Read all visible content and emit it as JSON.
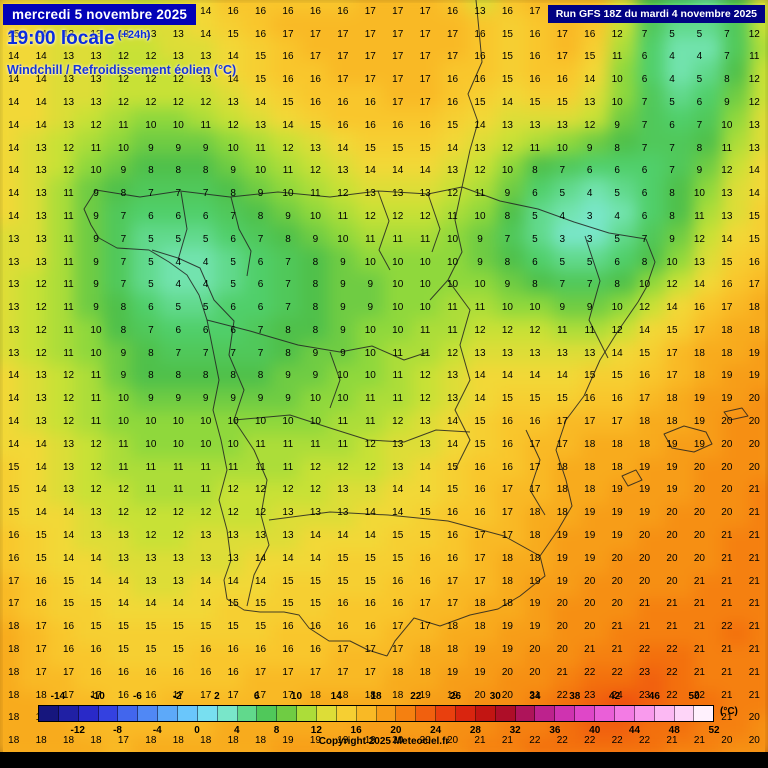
{
  "header": {
    "date": "mercredi 5 novembre 2025",
    "time": "19:00 locale",
    "offset": "(+24h)",
    "variable": "Windchill / Refroidissement éolien (°C)",
    "run": "Run GFS 18Z du mardi 4 novembre 2025"
  },
  "footer": {
    "copyright": "Copyright 2025 Meteociel.fr"
  },
  "legend": {
    "min": -16,
    "max": 52,
    "step": 2,
    "unit": "(°C)",
    "ticks_top": [
      "-14",
      "-10",
      "-6",
      "-2",
      "2",
      "6",
      "10",
      "14",
      "18",
      "22",
      "26",
      "30",
      "34",
      "38",
      "42",
      "46",
      "50"
    ],
    "ticks_bottom": [
      "-12",
      "-8",
      "-4",
      "0",
      "4",
      "8",
      "12",
      "16",
      "20",
      "24",
      "28",
      "32",
      "36",
      "40",
      "44",
      "48",
      "52"
    ]
  },
  "colors": {
    "stops": [
      [
        -16,
        "#10106a"
      ],
      [
        -14,
        "#1b1b8f"
      ],
      [
        -12,
        "#2424b8"
      ],
      [
        -10,
        "#2d2dd8"
      ],
      [
        -8,
        "#3a55e8"
      ],
      [
        -6,
        "#4a76f2"
      ],
      [
        -4,
        "#569af7"
      ],
      [
        -2,
        "#63b8fa"
      ],
      [
        0,
        "#70d4fb"
      ],
      [
        2,
        "#7fe9e4"
      ],
      [
        4,
        "#72e3ae"
      ],
      [
        6,
        "#50cf6a"
      ],
      [
        8,
        "#4fc04a"
      ],
      [
        10,
        "#8fd83c"
      ],
      [
        12,
        "#c8e136"
      ],
      [
        14,
        "#f2d837"
      ],
      [
        16,
        "#f9c62c"
      ],
      [
        18,
        "#f8ab1d"
      ],
      [
        20,
        "#f68f13"
      ],
      [
        22,
        "#f3700d"
      ],
      [
        24,
        "#ee4f0e"
      ],
      [
        26,
        "#e3300e"
      ],
      [
        28,
        "#cf1a10"
      ],
      [
        30,
        "#b40f14"
      ],
      [
        32,
        "#a80d3c"
      ],
      [
        34,
        "#b41a78"
      ],
      [
        36,
        "#c62aa2"
      ],
      [
        38,
        "#d83cbe"
      ],
      [
        40,
        "#e551d2"
      ],
      [
        42,
        "#ef6cde"
      ],
      [
        44,
        "#f78ae9"
      ],
      [
        46,
        "#fbaaf0"
      ],
      [
        48,
        "#fdc8f6"
      ],
      [
        50,
        "#ffe2fa"
      ],
      [
        52,
        "#ffffff"
      ]
    ]
  },
  "grid": {
    "cols": 28,
    "rows": 33,
    "values": [
      "15 14 13 13 13 12 13 14 16 16 16 16 16 17 17 17 16 13 16 17 17 17 13 8 6 5 8 13",
      "15 14 13 13 13 13 13 14 15 16 17 17 17 17 17 17 17 16 15 16 17 16 12 7 5 5 7 12",
      "14 14 13 13 12 12 13 13 14 15 16 17 17 17 17 17 17 16 15 16 17 15 11 6 4 4 7 11",
      "14 14 13 13 12 12 12 13 14 15 16 16 17 17 17 17 16 16 15 16 16 14 10 6 4 5 8 12",
      "14 14 13 13 12 12 12 12 13 14 15 16 16 16 17 17 16 15 14 15 15 13 10 7 5 6 9 12",
      "14 14 13 12 11 10 10 11 12 13 14 15 16 16 16 16 15 14 13 13 13 12 9 7 6 7 10 13",
      "14 13 12 11 10 9 9 9 10 11 12 13 14 15 15 15 14 13 12 11 10 9 8 7 7 8 11 13",
      "14 13 12 10 9 8 8 8 9 10 11 12 13 14 14 14 13 12 10 8 7 6 6 6 7 9 12 14",
      "14 13 11 9 8 7 7 7 8 9 10 11 12 13 13 13 12 11 9 6 5 4 5 6 8 10 13 14",
      "14 13 11 9 7 6 6 6 7 8 9 10 11 12 12 12 11 10 8 5 4 3 4 6 8 11 13 15",
      "13 13 11 9 7 5 5 5 6 7 8 9 10 11 11 11 10 9 7 5 3 3 5 7 9 12 14 15",
      "13 13 11 9 7 5 4 4 5 6 7 8 9 10 10 10 10 9 8 6 5 5 6 8 10 13 15 16",
      "13 12 11 9 7 5 4 4 5 6 7 8 9 9 10 10 10 10 9 8 7 7 8 10 12 14 16 17",
      "13 12 11 9 8 6 5 5 6 6 7 8 9 9 10 10 11 11 10 10 9 9 10 12 14 16 17 18",
      "13 12 11 10 8 7 6 6 6 7 8 8 9 10 10 11 11 12 12 12 11 11 12 14 15 17 18 18",
      "13 12 11 10 9 8 7 7 7 7 8 9 9 10 11 11 12 13 13 13 13 13 14 15 17 18 18 19",
      "14 13 12 11 9 8 8 8 8 8 9 9 10 10 11 12 13 14 14 14 14 15 15 16 17 18 19 19",
      "14 13 12 11 10 9 9 9 9 9 9 10 10 11 11 12 13 14 15 15 15 16 16 17 18 19 19 20",
      "14 13 12 11 10 10 10 10 10 10 10 10 11 11 12 13 14 15 16 16 17 17 17 18 18 19 20 20",
      "14 14 13 12 11 10 10 10 10 11 11 11 11 12 13 13 14 15 16 17 17 18 18 18 19 19 20 20",
      "15 14 13 12 11 11 11 11 11 11 11 12 12 12 13 14 15 16 16 17 18 18 18 19 19 20 20 20",
      "15 14 13 12 12 11 11 11 12 12 12 12 13 13 14 14 15 16 17 17 18 18 19 19 19 20 20 21",
      "15 14 14 13 12 12 12 12 12 12 13 13 13 14 14 15 16 16 17 18 18 19 19 19 20 20 20 21",
      "16 15 14 13 13 12 12 13 13 13 13 14 14 14 15 15 16 17 17 18 19 19 19 20 20 20 21 21",
      "16 15 14 14 13 13 13 13 13 14 14 14 15 15 15 16 16 17 18 18 19 19 20 20 20 20 21 21",
      "17 16 15 14 14 13 13 14 14 14 15 15 15 15 16 16 17 17 18 19 19 20 20 20 20 21 21 21",
      "17 16 15 15 14 14 14 14 15 15 15 15 16 16 16 17 17 18 18 19 20 20 20 21 21 21 21 21",
      "18 17 16 15 15 15 15 15 15 15 16 16 16 16 17 17 18 18 19 19 20 20 21 21 21 21 22 21",
      "18 17 16 16 15 15 15 16 16 16 16 16 17 17 17 18 18 19 19 20 20 21 21 22 22 21 21 21",
      "18 17 17 16 16 16 16 16 16 17 17 17 17 17 18 18 19 19 20 20 21 22 22 23 22 21 21 21",
      "18 18 17 17 16 16 17 17 17 17 17 18 18 18 18 19 19 20 20 21 22 23 24 23 22 22 21 21",
      "18 18 18 17 17 17 17 17 18 18 18 18 18 19 19 19 20 20 21 21 22 23 23 22 22 21 21 20",
      "18 18 18 18 17 18 18 18 18 18 19 19 19 19 20 20 20 21 21 22 22 22 22 22 21 21 20 20"
    ]
  }
}
